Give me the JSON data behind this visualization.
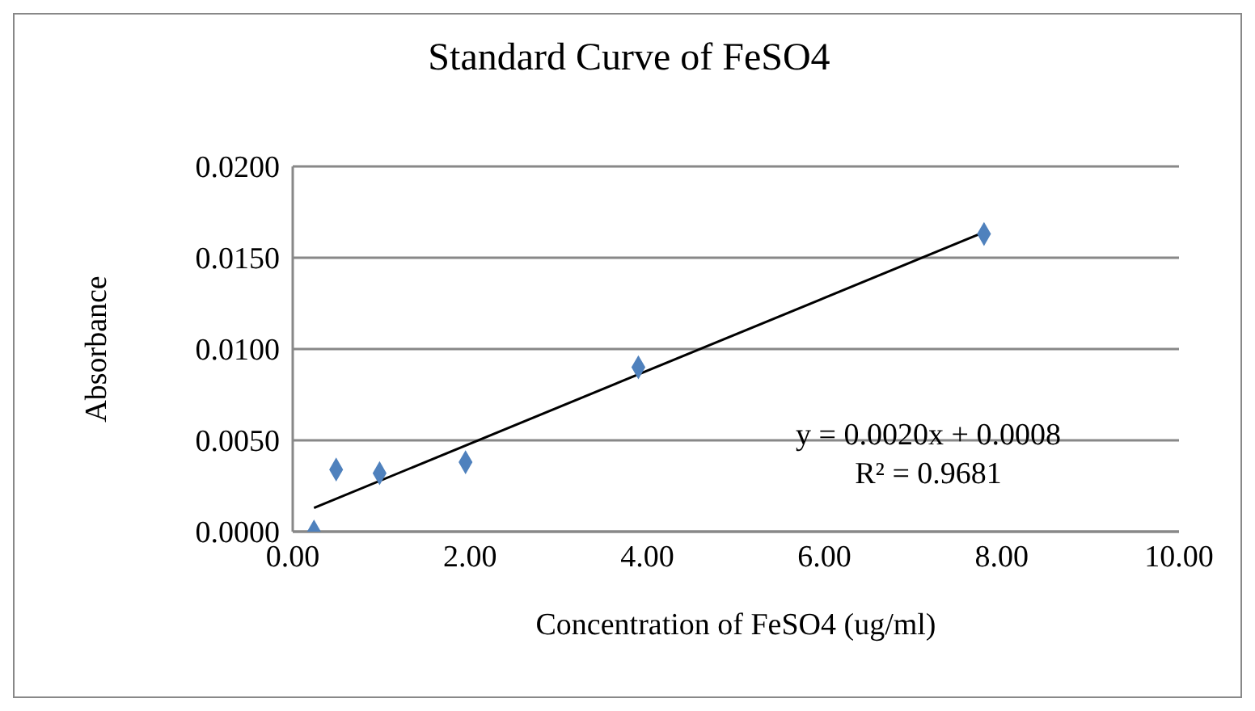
{
  "chart_data": {
    "type": "scatter",
    "title": "Standard Curve of FeSO4",
    "xlabel": "Concentration of FeSO4 (ug/ml)",
    "ylabel": "Absorbance",
    "annotations": [
      "y = 0.0020x + 0.0008",
      "R² = 0.9681"
    ],
    "x": [
      0.24,
      0.49,
      0.98,
      1.95,
      3.9,
      7.8
    ],
    "series": [
      {
        "color": "#4f81bd",
        "values": [
          0.0,
          0.0034,
          0.0032,
          0.0038,
          0.009,
          0.0163
        ]
      },
      {
        "type": "line",
        "color": "#000000",
        "x": [
          0.24,
          7.8
        ],
        "values": [
          0.0013,
          0.0164
        ],
        "marker": "none",
        "line_style": "solid"
      }
    ],
    "xlim": [
      0,
      10
    ],
    "xticks": [
      {
        "value": 0,
        "label": "0.00"
      },
      {
        "value": 2,
        "label": "2.00"
      },
      {
        "value": 4,
        "label": "4.00"
      },
      {
        "value": 6,
        "label": "6.00"
      },
      {
        "value": 8,
        "label": "8.00"
      },
      {
        "value": 10,
        "label": "10.00"
      }
    ],
    "ylim": [
      0,
      0.02
    ],
    "yticks": [
      {
        "value": 0,
        "label": "0.0000"
      },
      {
        "value": 0.005,
        "label": "0.0050"
      },
      {
        "value": 0.01,
        "label": "0.0100"
      },
      {
        "value": 0.015,
        "label": "0.0150"
      },
      {
        "value": 0.02,
        "label": "0.0200"
      }
    ],
    "grid": "y",
    "marker": "diamond"
  }
}
